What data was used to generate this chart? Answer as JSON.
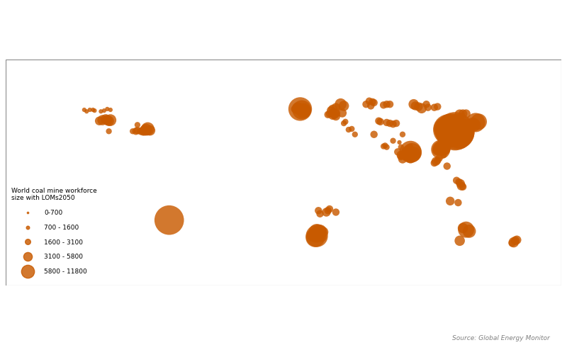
{
  "source_text": "Source: Global Energy Monitor",
  "legend_title": "World coal mine workforce\nsize with LOMs2050",
  "legend_entries": [
    "0-700",
    "700 - 1600",
    "1600 - 3100",
    "3100 - 5800",
    "5800 - 11800"
  ],
  "legend_sizes": [
    3,
    6,
    10,
    16,
    24
  ],
  "bubble_color": "#C85A00",
  "bubble_alpha": 0.82,
  "map_facecolor": "#eeeeee",
  "ocean_color": "#ffffff",
  "border_color": "#aaaaaa",
  "border_lw": 0.4,
  "background_color": "#ffffff",
  "xlim": [
    -170,
    180
  ],
  "ylim": [
    -60,
    82
  ],
  "mines": [
    {
      "lon": -120.5,
      "lat": 50.5,
      "size": 3
    },
    {
      "lon": -119,
      "lat": 49.5,
      "size": 3
    },
    {
      "lon": -117,
      "lat": 50.5,
      "size": 3
    },
    {
      "lon": -115,
      "lat": 50.5,
      "size": 3
    },
    {
      "lon": -114,
      "lat": 50,
      "size": 3
    },
    {
      "lon": -110,
      "lat": 49.5,
      "size": 3
    },
    {
      "lon": -108,
      "lat": 50,
      "size": 3
    },
    {
      "lon": -106,
      "lat": 51,
      "size": 3
    },
    {
      "lon": -104,
      "lat": 50.5,
      "size": 3
    },
    {
      "lon": -111,
      "lat": 43.5,
      "size": 6
    },
    {
      "lon": -109,
      "lat": 44,
      "size": 7
    },
    {
      "lon": -107,
      "lat": 44.5,
      "size": 7
    },
    {
      "lon": -106,
      "lat": 44,
      "size": 7
    },
    {
      "lon": -105,
      "lat": 43.5,
      "size": 7
    },
    {
      "lon": -104,
      "lat": 44,
      "size": 8
    },
    {
      "lon": -79,
      "lat": 37.5,
      "size": 7
    },
    {
      "lon": -80.5,
      "lat": 38.5,
      "size": 9
    },
    {
      "lon": -81.5,
      "lat": 38,
      "size": 8
    },
    {
      "lon": -82.5,
      "lat": 37.5,
      "size": 7
    },
    {
      "lon": -83.5,
      "lat": 37,
      "size": 6
    },
    {
      "lon": -85,
      "lat": 37,
      "size": 5
    },
    {
      "lon": -87,
      "lat": 37.5,
      "size": 5
    },
    {
      "lon": -88,
      "lat": 37,
      "size": 5
    },
    {
      "lon": -87,
      "lat": 41,
      "size": 4
    },
    {
      "lon": -90,
      "lat": 37,
      "size": 4
    },
    {
      "lon": -105,
      "lat": 37,
      "size": 4
    },
    {
      "lon": -67,
      "lat": -19,
      "size": 20
    },
    {
      "lon": 15.5,
      "lat": 51,
      "size": 16
    },
    {
      "lon": 16.5,
      "lat": 50.5,
      "size": 13
    },
    {
      "lon": 17.5,
      "lat": 50,
      "size": 10
    },
    {
      "lon": 18.5,
      "lat": 50,
      "size": 8
    },
    {
      "lon": 14,
      "lat": 51.5,
      "size": 8
    },
    {
      "lon": 13,
      "lat": 51,
      "size": 6
    },
    {
      "lon": 12,
      "lat": 51,
      "size": 5
    },
    {
      "lon": 41,
      "lat": 54,
      "size": 8
    },
    {
      "lon": 43,
      "lat": 53,
      "size": 7
    },
    {
      "lon": 59,
      "lat": 56,
      "size": 5
    },
    {
      "lon": 61,
      "lat": 55.5,
      "size": 5
    },
    {
      "lon": 62,
      "lat": 55,
      "size": 5
    },
    {
      "lon": 57,
      "lat": 54,
      "size": 5
    },
    {
      "lon": 60,
      "lat": 53,
      "size": 5
    },
    {
      "lon": 68,
      "lat": 53.5,
      "size": 5
    },
    {
      "lon": 70,
      "lat": 54,
      "size": 5
    },
    {
      "lon": 72,
      "lat": 54,
      "size": 5
    },
    {
      "lon": 87,
      "lat": 54,
      "size": 7
    },
    {
      "lon": 88,
      "lat": 53,
      "size": 6
    },
    {
      "lon": 90,
      "lat": 52.5,
      "size": 6
    },
    {
      "lon": 92,
      "lat": 51.5,
      "size": 7
    },
    {
      "lon": 95,
      "lat": 54,
      "size": 5
    },
    {
      "lon": 96,
      "lat": 52,
      "size": 5
    },
    {
      "lon": 100,
      "lat": 52,
      "size": 5
    },
    {
      "lon": 102,
      "lat": 52.5,
      "size": 5
    },
    {
      "lon": 116,
      "lat": 47.5,
      "size": 7
    },
    {
      "lon": 118,
      "lat": 48,
      "size": 6
    },
    {
      "lon": 120,
      "lat": 48,
      "size": 6
    },
    {
      "lon": 111,
      "lat": 42,
      "size": 6
    },
    {
      "lon": 107,
      "lat": 38.5,
      "size": 16
    },
    {
      "lon": 109,
      "lat": 38,
      "size": 21
    },
    {
      "lon": 111,
      "lat": 37.5,
      "size": 23
    },
    {
      "lon": 113,
      "lat": 37,
      "size": 26
    },
    {
      "lon": 114,
      "lat": 36.5,
      "size": 24
    },
    {
      "lon": 115.5,
      "lat": 36,
      "size": 21
    },
    {
      "lon": 117,
      "lat": 36.5,
      "size": 18
    },
    {
      "lon": 118.5,
      "lat": 37,
      "size": 14
    },
    {
      "lon": 120,
      "lat": 36.5,
      "size": 11
    },
    {
      "lon": 121,
      "lat": 37.5,
      "size": 8
    },
    {
      "lon": 126,
      "lat": 42.5,
      "size": 13
    },
    {
      "lon": 128,
      "lat": 43,
      "size": 11
    },
    {
      "lon": 124,
      "lat": 41.5,
      "size": 9
    },
    {
      "lon": 125,
      "lat": 41,
      "size": 9
    },
    {
      "lon": 104,
      "lat": 25.5,
      "size": 13
    },
    {
      "lon": 105,
      "lat": 26.5,
      "size": 11
    },
    {
      "lon": 103,
      "lat": 26,
      "size": 9
    },
    {
      "lon": 106,
      "lat": 26,
      "size": 9
    },
    {
      "lon": 104,
      "lat": 27,
      "size": 7
    },
    {
      "lon": 102,
      "lat": 25,
      "size": 7
    },
    {
      "lon": 85,
      "lat": 24,
      "size": 15
    },
    {
      "lon": 86,
      "lat": 23.5,
      "size": 13
    },
    {
      "lon": 84,
      "lat": 23,
      "size": 11
    },
    {
      "lon": 87,
      "lat": 23,
      "size": 9
    },
    {
      "lon": 83,
      "lat": 22.5,
      "size": 9
    },
    {
      "lon": 82,
      "lat": 23,
      "size": 7
    },
    {
      "lon": 80.5,
      "lat": 22,
      "size": 6
    },
    {
      "lon": 79,
      "lat": 22,
      "size": 6
    },
    {
      "lon": 85,
      "lat": 20,
      "size": 7
    },
    {
      "lon": 80,
      "lat": 19.5,
      "size": 6
    },
    {
      "lon": 79,
      "lat": 21,
      "size": 5
    },
    {
      "lon": 77,
      "lat": 24,
      "size": 5
    },
    {
      "lon": 84,
      "lat": 27,
      "size": 4
    },
    {
      "lon": 79,
      "lat": 27,
      "size": 4
    },
    {
      "lon": 74,
      "lat": 31,
      "size": 4
    },
    {
      "lon": 68,
      "lat": 27.5,
      "size": 4
    },
    {
      "lon": 69,
      "lat": 28,
      "size": 4
    },
    {
      "lon": 70,
      "lat": 27,
      "size": 4
    },
    {
      "lon": 80,
      "lat": 35,
      "size": 4
    },
    {
      "lon": 78,
      "lat": 30,
      "size": 3
    },
    {
      "lon": 85,
      "lat": 28,
      "size": 3
    },
    {
      "lon": 100,
      "lat": 17,
      "size": 5
    },
    {
      "lon": 101,
      "lat": 18,
      "size": 6
    },
    {
      "lon": 102,
      "lat": 18.5,
      "size": 5
    },
    {
      "lon": 103,
      "lat": 20,
      "size": 5
    },
    {
      "lon": 108,
      "lat": 15,
      "size": 5
    },
    {
      "lon": 106,
      "lat": 22,
      "size": 4
    },
    {
      "lon": 115.5,
      "lat": 5,
      "size": 5
    },
    {
      "lon": 116.5,
      "lat": 4,
      "size": 6
    },
    {
      "lon": 117,
      "lat": 2.5,
      "size": 6
    },
    {
      "lon": 118,
      "lat": 2,
      "size": 5
    },
    {
      "lon": 114,
      "lat": 6,
      "size": 5
    },
    {
      "lon": 110,
      "lat": -7,
      "size": 6
    },
    {
      "lon": 115,
      "lat": -8,
      "size": 5
    },
    {
      "lon": 120,
      "lat": -25,
      "size": 11
    },
    {
      "lon": 122,
      "lat": -26,
      "size": 9
    },
    {
      "lon": 118,
      "lat": -24,
      "size": 7
    },
    {
      "lon": 116,
      "lat": -32,
      "size": 7
    },
    {
      "lon": 150,
      "lat": -33,
      "size": 7
    },
    {
      "lon": 151,
      "lat": -32,
      "size": 6
    },
    {
      "lon": 152,
      "lat": -31.5,
      "size": 6
    },
    {
      "lon": 149,
      "lat": -33.5,
      "size": 5
    },
    {
      "lon": 26,
      "lat": -26.5,
      "size": 11
    },
    {
      "lon": 27,
      "lat": -26,
      "size": 9
    },
    {
      "lon": 28,
      "lat": -26,
      "size": 9
    },
    {
      "lon": 30,
      "lat": -26.5,
      "size": 7
    },
    {
      "lon": 29,
      "lat": -26,
      "size": 7
    },
    {
      "lon": 29,
      "lat": -29.5,
      "size": 7
    },
    {
      "lon": 28,
      "lat": -29,
      "size": 6
    },
    {
      "lon": 27,
      "lat": -30,
      "size": 6
    },
    {
      "lon": 26,
      "lat": -29,
      "size": 15
    },
    {
      "lon": 25,
      "lat": -30,
      "size": 13
    },
    {
      "lon": 24,
      "lat": -28.5,
      "size": 9
    },
    {
      "lon": 25.5,
      "lat": -29,
      "size": 9
    },
    {
      "lon": 32,
      "lat": -14,
      "size": 6
    },
    {
      "lon": 33,
      "lat": -13,
      "size": 5
    },
    {
      "lon": 34,
      "lat": -12,
      "size": 5
    },
    {
      "lon": 38,
      "lat": -14,
      "size": 5
    },
    {
      "lon": 27,
      "lat": -13,
      "size": 5
    },
    {
      "lon": 28,
      "lat": -15,
      "size": 5
    },
    {
      "lon": 50,
      "lat": 35,
      "size": 4
    },
    {
      "lon": 46,
      "lat": 38,
      "size": 4
    },
    {
      "lon": 48,
      "lat": 38.5,
      "size": 4
    },
    {
      "lon": 43,
      "lat": 42,
      "size": 4
    },
    {
      "lon": 44,
      "lat": 43,
      "size": 4
    },
    {
      "lon": 38,
      "lat": 46.5,
      "size": 6
    },
    {
      "lon": 36,
      "lat": 47,
      "size": 6
    },
    {
      "lon": 37,
      "lat": 48,
      "size": 7
    },
    {
      "lon": 38,
      "lat": 48.5,
      "size": 6
    },
    {
      "lon": 36,
      "lat": 48.5,
      "size": 6
    },
    {
      "lon": 34,
      "lat": 48,
      "size": 5
    },
    {
      "lon": 33,
      "lat": 47.5,
      "size": 5
    },
    {
      "lon": 70,
      "lat": 42.5,
      "size": 5
    },
    {
      "lon": 72,
      "lat": 42,
      "size": 5
    },
    {
      "lon": 74,
      "lat": 41.5,
      "size": 5
    },
    {
      "lon": 76,
      "lat": 42,
      "size": 5
    },
    {
      "lon": 65,
      "lat": 43.5,
      "size": 5
    },
    {
      "lon": 66,
      "lat": 43,
      "size": 5
    },
    {
      "lon": 62,
      "lat": 35,
      "size": 5
    },
    {
      "lon": 35,
      "lat": 50,
      "size": 6
    },
    {
      "lon": 36,
      "lat": 51,
      "size": 6
    },
    {
      "lon": 38,
      "lat": 52,
      "size": 6
    },
    {
      "lon": 42,
      "lat": 48.5,
      "size": 6
    }
  ]
}
